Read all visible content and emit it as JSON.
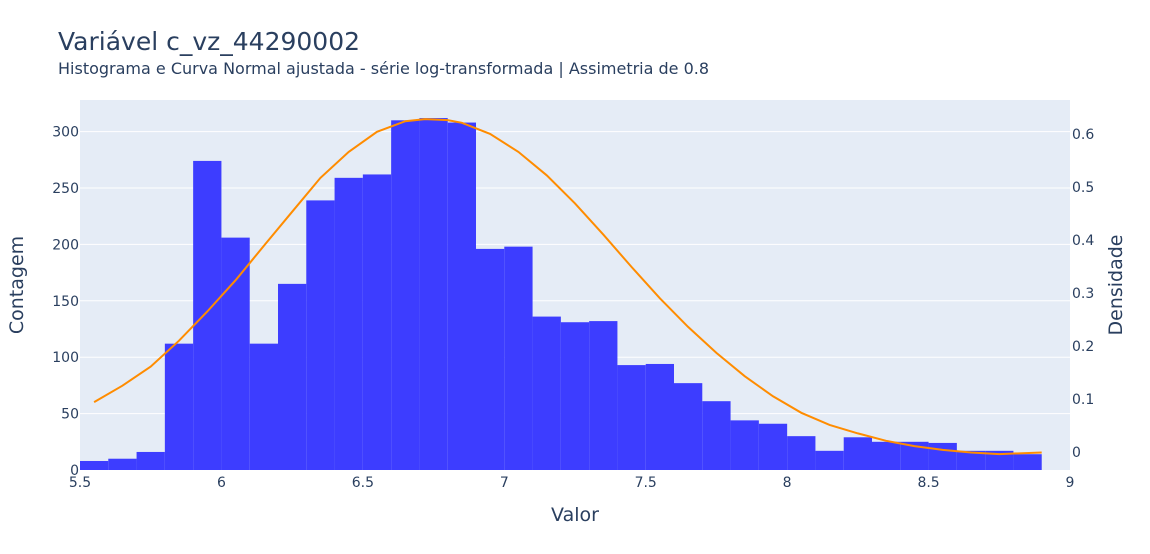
{
  "chart_data": {
    "type": "bar",
    "title": "Variável c_vz_44290002",
    "subtitle": "Histograma e Curva Normal ajustada - série log-transformada | Assimetria de 0.8",
    "xlabel": "Valor",
    "ylabel": "Contagem",
    "y2label": "Densidade",
    "xlim": [
      5.5,
      9
    ],
    "ylim": [
      0,
      328
    ],
    "y2lim": [
      -0.034,
      0.664
    ],
    "x_ticks": [
      5.5,
      6,
      6.5,
      7,
      7.5,
      8,
      8.5,
      9
    ],
    "x_tick_labels": [
      "5.5",
      "6",
      "6.5",
      "7",
      "7.5",
      "8",
      "8.5",
      "9"
    ],
    "y_ticks": [
      0,
      50,
      100,
      150,
      200,
      250,
      300
    ],
    "y_tick_labels": [
      "0",
      "50",
      "100",
      "150",
      "200",
      "250",
      "300"
    ],
    "y2_ticks": [
      0,
      0.1,
      0.2,
      0.3,
      0.4,
      0.5,
      0.6
    ],
    "y2_tick_labels": [
      "0",
      "0.1",
      "0.2",
      "0.3",
      "0.4",
      "0.5",
      "0.6"
    ],
    "grid": true,
    "series": [
      {
        "type": "histogram",
        "color": "#3d3dff",
        "bin_edges": [
          5.5,
          5.6,
          5.7,
          5.8,
          5.9,
          6.0,
          6.1,
          6.2,
          6.3,
          6.4,
          6.5,
          6.6,
          6.7,
          6.8,
          6.9,
          7.0,
          7.1,
          7.2,
          7.3,
          7.4,
          7.5,
          7.6,
          7.7,
          7.8,
          7.9,
          8.0,
          8.1,
          8.2,
          8.3,
          8.4,
          8.5,
          8.6,
          8.7,
          8.8,
          8.9,
          9.0
        ],
        "counts": [
          8,
          10,
          16,
          112,
          274,
          206,
          112,
          165,
          239,
          259,
          262,
          310,
          312,
          308,
          196,
          198,
          136,
          131,
          132,
          93,
          94,
          77,
          61,
          44,
          41,
          30,
          17,
          29,
          25,
          25,
          24,
          17,
          17,
          14,
          0
        ]
      },
      {
        "type": "line",
        "color": "#ff8c00",
        "axis": "y2",
        "x": [
          5.55,
          5.65,
          5.75,
          5.85,
          5.95,
          6.05,
          6.15,
          6.25,
          6.35,
          6.45,
          6.55,
          6.65,
          6.72,
          6.8,
          6.85,
          6.95,
          7.05,
          7.15,
          7.25,
          7.35,
          7.45,
          7.55,
          7.65,
          7.75,
          7.85,
          7.95,
          8.05,
          8.15,
          8.25,
          8.35,
          8.45,
          8.55,
          8.65,
          8.75,
          8.9
        ],
        "y": [
          0.094,
          0.125,
          0.161,
          0.21,
          0.265,
          0.324,
          0.389,
          0.453,
          0.517,
          0.566,
          0.604,
          0.624,
          0.628,
          0.626,
          0.621,
          0.6,
          0.566,
          0.522,
          0.469,
          0.41,
          0.349,
          0.29,
          0.236,
          0.187,
          0.143,
          0.105,
          0.074,
          0.051,
          0.035,
          0.021,
          0.011,
          0.004,
          -0.001,
          -0.004,
          -0.001
        ]
      }
    ]
  }
}
